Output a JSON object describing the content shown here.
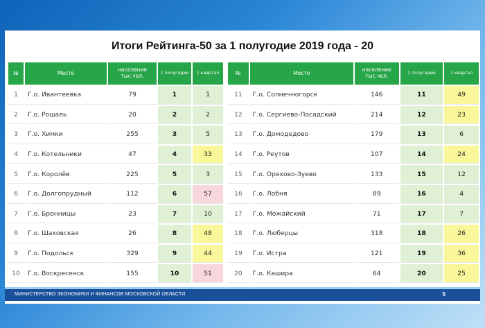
{
  "title": "Итоги Рейтинга-50 за 1 полугодие 2019 года - 20",
  "columns": {
    "num": "№",
    "place": "Место",
    "population": "население тыс.чел.",
    "half": "1 полугодие",
    "quarter": "1 квартал"
  },
  "colors": {
    "header_green": "#27a549",
    "half_bg": "#dff0d5",
    "q_green": "#dff0d5",
    "q_yellow": "#faf79a",
    "q_pink": "#f7d6dc"
  },
  "left_rows": [
    {
      "num": "1",
      "place": "Г.о. Ивантеевка",
      "population": "79",
      "half": "1",
      "quarter": "1",
      "q_color": "green"
    },
    {
      "num": "2",
      "place": "Г.о. Рошаль",
      "population": "20",
      "half": "2",
      "quarter": "2",
      "q_color": "green"
    },
    {
      "num": "3",
      "place": "Г.о. Химки",
      "population": "255",
      "half": "3",
      "quarter": "5",
      "q_color": "green"
    },
    {
      "num": "4",
      "place": "Г.о. Котельники",
      "population": "47",
      "half": "4",
      "quarter": "33",
      "q_color": "yellow"
    },
    {
      "num": "5",
      "place": "Г.о. Королёв",
      "population": "225",
      "half": "5",
      "quarter": "3",
      "q_color": "green"
    },
    {
      "num": "6",
      "place": "Г.о. Долгопрудный",
      "population": "112",
      "half": "6",
      "quarter": "57",
      "q_color": "pink"
    },
    {
      "num": "7",
      "place": "Г.о. Бронницы",
      "population": "23",
      "half": "7",
      "quarter": "10",
      "q_color": "green"
    },
    {
      "num": "8",
      "place": "Г.о. Шаховская",
      "population": "26",
      "half": "8",
      "quarter": "48",
      "q_color": "yellow"
    },
    {
      "num": "9",
      "place": "Г.о. Подольск",
      "population": "329",
      "half": "9",
      "quarter": "44",
      "q_color": "yellow"
    },
    {
      "num": "10",
      "place": "Г.о. Воскресенск",
      "population": "155",
      "half": "10",
      "quarter": "51",
      "q_color": "pink"
    }
  ],
  "right_rows": [
    {
      "num": "11",
      "place": "Г.о. Солнечногорск",
      "population": "146",
      "half": "11",
      "quarter": "49",
      "q_color": "yellow"
    },
    {
      "num": "12",
      "place": "Г.о. Сергиево-Посадский",
      "population": "214",
      "half": "12",
      "quarter": "23",
      "q_color": "yellow"
    },
    {
      "num": "13",
      "place": "Г.о. Домодедово",
      "population": "179",
      "half": "13",
      "quarter": "6",
      "q_color": "green"
    },
    {
      "num": "14",
      "place": "Г.о. Реутов",
      "population": "107",
      "half": "14",
      "quarter": "24",
      "q_color": "yellow"
    },
    {
      "num": "15",
      "place": "Г.о. Орехово-Зуево",
      "population": "133",
      "half": "15",
      "quarter": "12",
      "q_color": "green"
    },
    {
      "num": "16",
      "place": "Г.о. Лобня",
      "population": "89",
      "half": "16",
      "quarter": "4",
      "q_color": "green"
    },
    {
      "num": "17",
      "place": "Г.о. Можайский",
      "population": "71",
      "half": "17",
      "quarter": "7",
      "q_color": "green"
    },
    {
      "num": "18",
      "place": "Г.о. Люберцы",
      "population": "318",
      "half": "18",
      "quarter": "26",
      "q_color": "yellow"
    },
    {
      "num": "19",
      "place": "Г.о. Истра",
      "population": "121",
      "half": "19",
      "quarter": "36",
      "q_color": "yellow"
    },
    {
      "num": "20",
      "place": "Г.о. Кашира",
      "population": "64",
      "half": "20",
      "quarter": "25",
      "q_color": "yellow"
    }
  ],
  "footer": {
    "text": "МИНИСТЕРСТВО ЭКОНОМИКИ И ФИНАНСОВ МОСКОВСКОЙ ОБЛАСТИ",
    "page": "5"
  }
}
